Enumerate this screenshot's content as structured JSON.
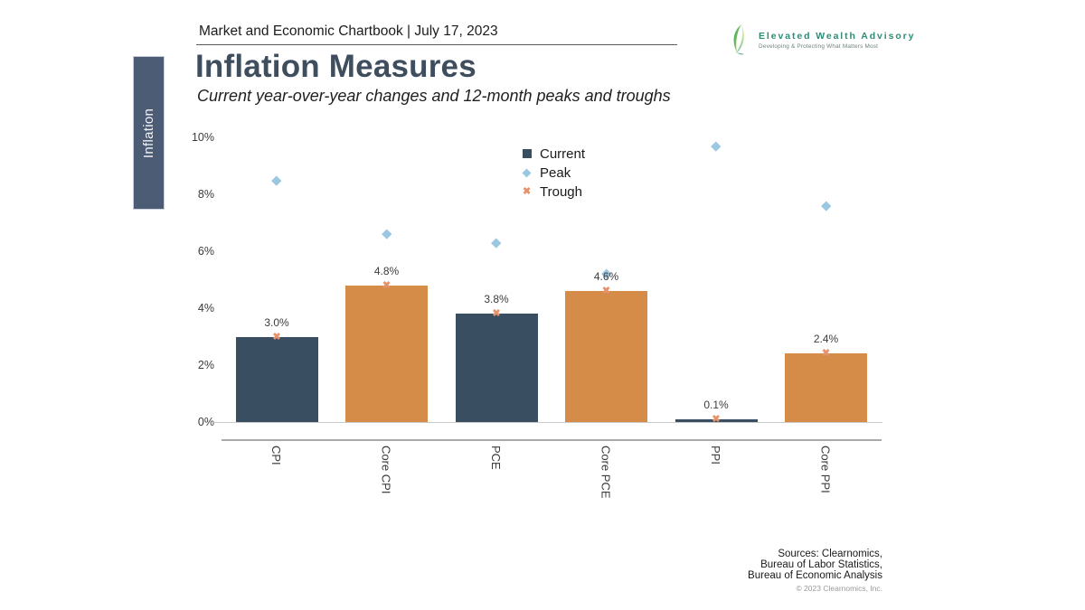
{
  "header": {
    "title": "Market and Economic Chartbook | July 17, 2023"
  },
  "logo": {
    "name": "Elevated Wealth Advisory",
    "tagline": "Developing & Protecting What Matters Most"
  },
  "sidebar": {
    "tab_label": "Inflation"
  },
  "page": {
    "title": "Inflation Measures",
    "subtitle": "Current year-over-year changes and 12-month peaks and troughs"
  },
  "chart_data": {
    "type": "bar",
    "title": "Inflation Measures",
    "subtitle": "Current year-over-year changes and 12-month peaks and troughs",
    "categories": [
      "CPI",
      "Core CPI",
      "PCE",
      "Core PCE",
      "PPI",
      "Core PPI"
    ],
    "series": [
      {
        "name": "Current",
        "marker": "square",
        "values": [
          3.0,
          4.8,
          3.8,
          4.6,
          0.1,
          2.4
        ],
        "data_labels": [
          "3.0%",
          "4.8%",
          "3.8%",
          "4.6%",
          "0.1%",
          "2.4%"
        ]
      },
      {
        "name": "Peak",
        "marker": "diamond",
        "values": [
          8.5,
          6.6,
          6.3,
          5.2,
          9.7,
          7.6
        ]
      },
      {
        "name": "Trough",
        "marker": "x",
        "values": [
          3.0,
          4.8,
          3.8,
          4.6,
          0.1,
          2.4
        ]
      }
    ],
    "bar_colors": [
      "#394e60",
      "#d68c49",
      "#394e60",
      "#d68c49",
      "#394e60",
      "#d68c49"
    ],
    "colors": {
      "current": "#394e60",
      "core_bar": "#d68c49",
      "peak": "#9cc7e2",
      "trough": "#e8926c"
    },
    "ylim": [
      0,
      10
    ],
    "yticks": [
      "0%",
      "2%",
      "4%",
      "6%",
      "8%",
      "10%"
    ],
    "grid": false,
    "legend_position": "top-right",
    "xlabel": "",
    "ylabel": ""
  },
  "footer": {
    "sources_lines": [
      "Sources: Clearnomics,",
      "Bureau of Labor Statistics,",
      "Bureau of Economic Analysis"
    ],
    "copyright": "© 2023 Clearnomics, Inc."
  }
}
